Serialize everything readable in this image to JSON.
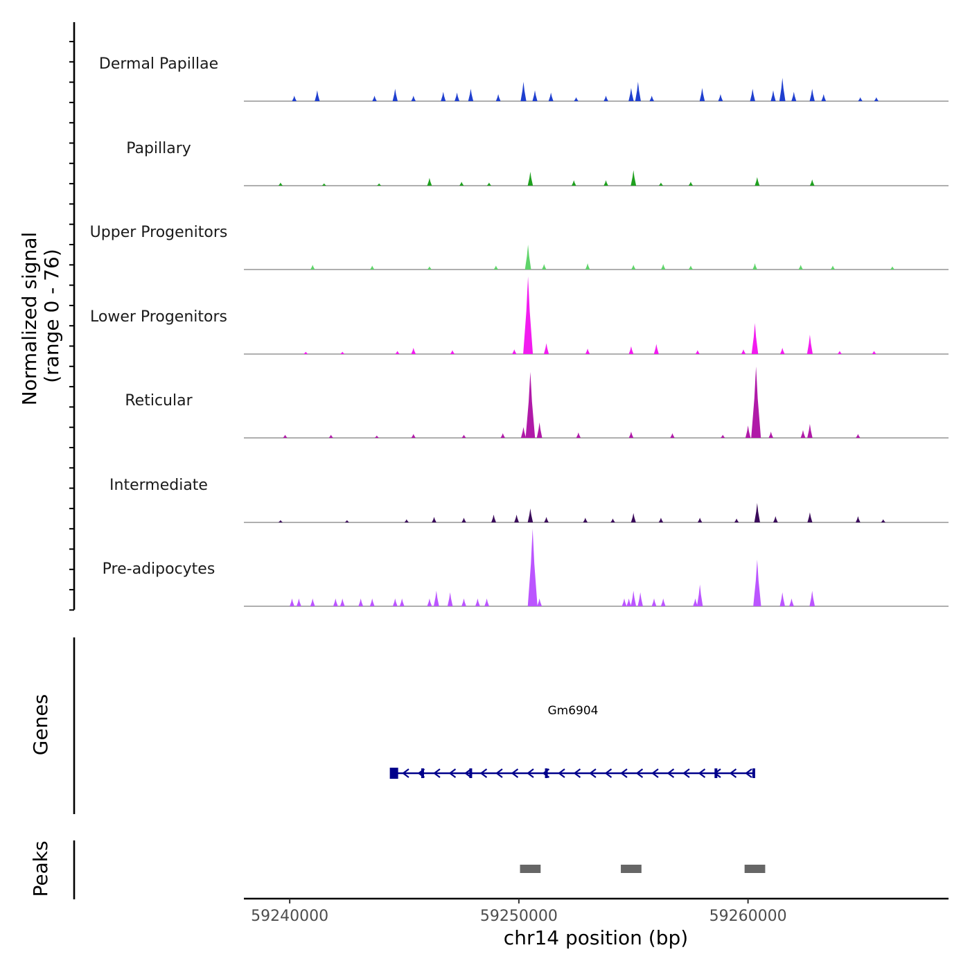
{
  "chart_data": {
    "type": "area",
    "title": "",
    "chromosome": "chr14",
    "xlabel": "chr14 position (bp)",
    "ylabel_line1": "Normalized signal",
    "ylabel_line2": "(range 0 - 76)",
    "y_range": [
      0,
      76
    ],
    "xlim": [
      59238000,
      59268750
    ],
    "x_ticks": [
      59240000,
      59250000,
      59260000
    ],
    "x_tick_labels": [
      "59240000",
      "59250000",
      "59260000"
    ],
    "series": [
      {
        "name": "Dermal Papillae",
        "color": "#1f3fcf",
        "peaks": [
          [
            59240200,
            7
          ],
          [
            59241200,
            14
          ],
          [
            59243700,
            7
          ],
          [
            59244600,
            16
          ],
          [
            59245400,
            7
          ],
          [
            59246700,
            12
          ],
          [
            59247300,
            11
          ],
          [
            59247900,
            16
          ],
          [
            59249100,
            9
          ],
          [
            59250200,
            25
          ],
          [
            59250700,
            14
          ],
          [
            59251400,
            11
          ],
          [
            59252500,
            5
          ],
          [
            59253800,
            7
          ],
          [
            59254900,
            17
          ],
          [
            59255200,
            25
          ],
          [
            59255800,
            7
          ],
          [
            59258000,
            17
          ],
          [
            59258800,
            9
          ],
          [
            59260200,
            16
          ],
          [
            59261100,
            14
          ],
          [
            59261500,
            30
          ],
          [
            59262000,
            12
          ],
          [
            59262800,
            16
          ],
          [
            59263300,
            9
          ],
          [
            59264900,
            5
          ],
          [
            59265600,
            5
          ]
        ]
      },
      {
        "name": "Papillary",
        "color": "#1fa01f",
        "peaks": [
          [
            59239600,
            4
          ],
          [
            59241500,
            3
          ],
          [
            59243900,
            3
          ],
          [
            59246100,
            10
          ],
          [
            59247500,
            5
          ],
          [
            59248700,
            4
          ],
          [
            59250500,
            18
          ],
          [
            59252400,
            7
          ],
          [
            59253800,
            7
          ],
          [
            59255000,
            20
          ],
          [
            59256200,
            4
          ],
          [
            59257500,
            5
          ],
          [
            59260400,
            11
          ],
          [
            59262800,
            8
          ]
        ]
      },
      {
        "name": "Upper Progenitors",
        "color": "#5fd46a",
        "peaks": [
          [
            59241000,
            6
          ],
          [
            59243600,
            5
          ],
          [
            59246100,
            4
          ],
          [
            59249000,
            5
          ],
          [
            59250400,
            32
          ],
          [
            59251100,
            7
          ],
          [
            59253000,
            8
          ],
          [
            59255000,
            6
          ],
          [
            59256300,
            7
          ],
          [
            59257500,
            5
          ],
          [
            59260300,
            8
          ],
          [
            59262300,
            6
          ],
          [
            59263700,
            5
          ],
          [
            59266300,
            4
          ]
        ]
      },
      {
        "name": "Lower Progenitors",
        "color": "#f21cef",
        "peaks": [
          [
            59240700,
            3
          ],
          [
            59242300,
            3
          ],
          [
            59244700,
            4
          ],
          [
            59245400,
            8
          ],
          [
            59247100,
            5
          ],
          [
            59249800,
            6
          ],
          [
            59250400,
            100
          ],
          [
            59251200,
            14
          ],
          [
            59253000,
            7
          ],
          [
            59254900,
            10
          ],
          [
            59256000,
            13
          ],
          [
            59257800,
            5
          ],
          [
            59259800,
            6
          ],
          [
            59260300,
            40
          ],
          [
            59261500,
            8
          ],
          [
            59262700,
            25
          ],
          [
            59264000,
            4
          ],
          [
            59265500,
            4
          ]
        ]
      },
      {
        "name": "Reticular",
        "color": "#b01aa8",
        "peaks": [
          [
            59239800,
            4
          ],
          [
            59241800,
            4
          ],
          [
            59243800,
            3
          ],
          [
            59245400,
            5
          ],
          [
            59247600,
            4
          ],
          [
            59249300,
            6
          ],
          [
            59250200,
            14
          ],
          [
            59250500,
            85
          ],
          [
            59250900,
            20
          ],
          [
            59252600,
            7
          ],
          [
            59254900,
            8
          ],
          [
            59256700,
            6
          ],
          [
            59258900,
            4
          ],
          [
            59260000,
            16
          ],
          [
            59260350,
            92
          ],
          [
            59261000,
            8
          ],
          [
            59262400,
            10
          ],
          [
            59262700,
            18
          ],
          [
            59264800,
            5
          ]
        ]
      },
      {
        "name": "Intermediate",
        "color": "#3a0a5a",
        "peaks": [
          [
            59239600,
            3
          ],
          [
            59242500,
            3
          ],
          [
            59245100,
            4
          ],
          [
            59246300,
            7
          ],
          [
            59247600,
            6
          ],
          [
            59248900,
            10
          ],
          [
            59249900,
            10
          ],
          [
            59250500,
            18
          ],
          [
            59251200,
            7
          ],
          [
            59252900,
            6
          ],
          [
            59254100,
            5
          ],
          [
            59255000,
            12
          ],
          [
            59256200,
            6
          ],
          [
            59257900,
            6
          ],
          [
            59259500,
            5
          ],
          [
            59260400,
            25
          ],
          [
            59261200,
            8
          ],
          [
            59262700,
            13
          ],
          [
            59264800,
            8
          ],
          [
            59265900,
            4
          ]
        ]
      },
      {
        "name": "Pre-adipocytes",
        "color": "#bb55ff",
        "peaks": [
          [
            59240100,
            10
          ],
          [
            59240400,
            10
          ],
          [
            59241000,
            10
          ],
          [
            59242000,
            10
          ],
          [
            59242300,
            10
          ],
          [
            59243100,
            10
          ],
          [
            59243600,
            10
          ],
          [
            59244600,
            10
          ],
          [
            59244900,
            10
          ],
          [
            59246100,
            10
          ],
          [
            59246400,
            20
          ],
          [
            59247000,
            18
          ],
          [
            59247600,
            10
          ],
          [
            59248200,
            10
          ],
          [
            59248600,
            10
          ],
          [
            59250600,
            100
          ],
          [
            59250900,
            10
          ],
          [
            59254600,
            10
          ],
          [
            59254800,
            10
          ],
          [
            59255000,
            20
          ],
          [
            59255300,
            18
          ],
          [
            59255900,
            10
          ],
          [
            59256300,
            10
          ],
          [
            59257700,
            10
          ],
          [
            59257900,
            28
          ],
          [
            59260400,
            60
          ],
          [
            59261500,
            18
          ],
          [
            59261900,
            10
          ],
          [
            59262800,
            20
          ]
        ]
      }
    ],
    "genes": {
      "title": "Genes",
      "name": "Gm6904",
      "start": 59244500,
      "end": 59260300,
      "strand": "-",
      "exons": [
        59244550,
        59245800,
        59247900,
        59251200,
        59258600,
        59260250
      ],
      "color": "#00008b"
    },
    "peaks_track": {
      "title": "Peaks",
      "regions": [
        [
          59250050,
          59250950
        ],
        [
          59254450,
          59255350
        ],
        [
          59259850,
          59260750
        ]
      ],
      "color": "#666666"
    }
  }
}
